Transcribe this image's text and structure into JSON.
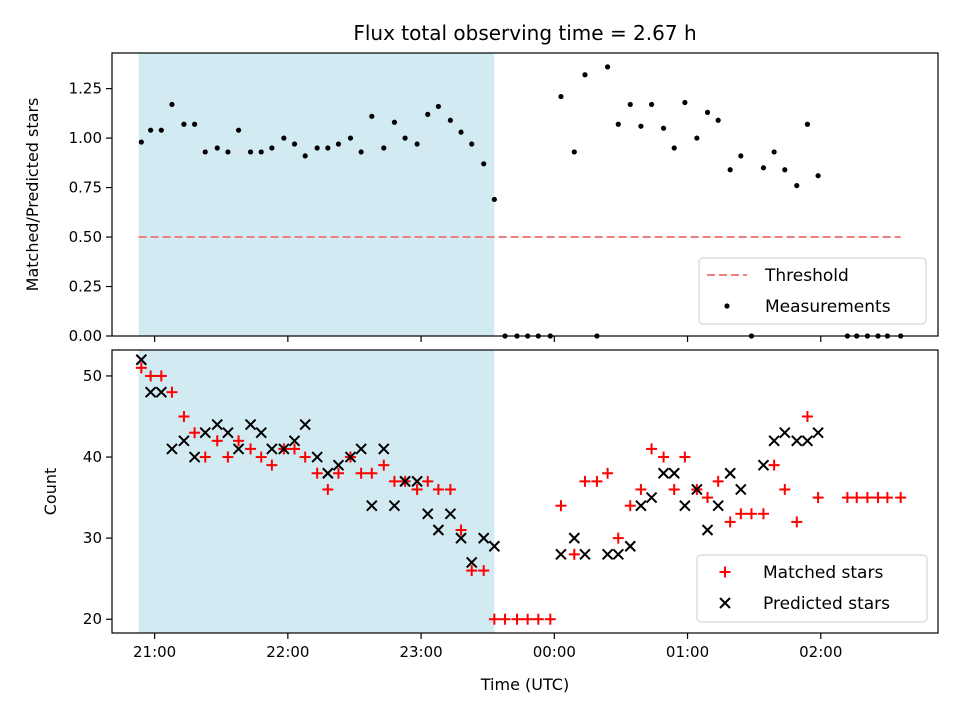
{
  "chart_data": {
    "type": "scatter",
    "title": "Flux total observing time = 2.67 h",
    "xlabel": "Time (UTC)",
    "x_ticks": [
      "21:00",
      "22:00",
      "23:00",
      "00:00",
      "01:00",
      "02:00"
    ],
    "x_tick_hours": [
      21,
      22,
      23,
      24,
      25,
      26
    ],
    "x_range_hours": [
      20.68,
      26.88
    ],
    "shaded_region_hours": [
      20.88,
      23.55
    ],
    "shade_color": "#add8e6",
    "panels": [
      {
        "ylabel": "Matched/Predicted stars",
        "ylim": [
          0,
          1.43
        ],
        "y_ticks": [
          "0.00",
          "0.25",
          "0.50",
          "0.75",
          "1.00",
          "1.25"
        ],
        "y_tick_values": [
          0,
          0.25,
          0.5,
          0.75,
          1.0,
          1.25
        ],
        "legend_position": "lower-right",
        "threshold": {
          "name": "Threshold",
          "value": 0.5,
          "x_start": 20.88,
          "x_end": 26.6,
          "color": "#f08080"
        },
        "series": [
          {
            "name": "Measurements",
            "marker": "dot",
            "color": "#000000",
            "points": [
              [
                20.9,
                0.98
              ],
              [
                20.97,
                1.04
              ],
              [
                21.05,
                1.04
              ],
              [
                21.13,
                1.17
              ],
              [
                21.22,
                1.07
              ],
              [
                21.3,
                1.07
              ],
              [
                21.38,
                0.93
              ],
              [
                21.47,
                0.95
              ],
              [
                21.55,
                0.93
              ],
              [
                21.63,
                1.04
              ],
              [
                21.72,
                0.93
              ],
              [
                21.8,
                0.93
              ],
              [
                21.88,
                0.95
              ],
              [
                21.97,
                1.0
              ],
              [
                22.05,
                0.97
              ],
              [
                22.13,
                0.91
              ],
              [
                22.22,
                0.95
              ],
              [
                22.3,
                0.95
              ],
              [
                22.38,
                0.97
              ],
              [
                22.47,
                1.0
              ],
              [
                22.55,
                0.93
              ],
              [
                22.63,
                1.11
              ],
              [
                22.72,
                0.95
              ],
              [
                22.8,
                1.08
              ],
              [
                22.88,
                1.0
              ],
              [
                22.97,
                0.97
              ],
              [
                23.05,
                1.12
              ],
              [
                23.13,
                1.16
              ],
              [
                23.22,
                1.09
              ],
              [
                23.3,
                1.03
              ],
              [
                23.38,
                0.97
              ],
              [
                23.47,
                0.87
              ],
              [
                23.55,
                0.69
              ],
              [
                23.63,
                0.0
              ],
              [
                23.72,
                0.0
              ],
              [
                23.8,
                0.0
              ],
              [
                23.88,
                0.0
              ],
              [
                23.97,
                0.0
              ],
              [
                24.05,
                1.21
              ],
              [
                24.15,
                0.93
              ],
              [
                24.23,
                1.32
              ],
              [
                24.32,
                0.0
              ],
              [
                24.4,
                1.36
              ],
              [
                24.48,
                1.07
              ],
              [
                24.57,
                1.17
              ],
              [
                24.65,
                1.06
              ],
              [
                24.73,
                1.17
              ],
              [
                24.82,
                1.05
              ],
              [
                24.9,
                0.95
              ],
              [
                24.98,
                1.18
              ],
              [
                25.07,
                1.0
              ],
              [
                25.15,
                1.13
              ],
              [
                25.23,
                1.09
              ],
              [
                25.32,
                0.84
              ],
              [
                25.4,
                0.91
              ],
              [
                25.48,
                0.0
              ],
              [
                25.57,
                0.85
              ],
              [
                25.65,
                0.93
              ],
              [
                25.73,
                0.84
              ],
              [
                25.82,
                0.76
              ],
              [
                25.9,
                1.07
              ],
              [
                25.98,
                0.81
              ],
              [
                26.2,
                0.0
              ],
              [
                26.27,
                0.0
              ],
              [
                26.35,
                0.0
              ],
              [
                26.43,
                0.0
              ],
              [
                26.5,
                0.0
              ],
              [
                26.6,
                0.0
              ]
            ]
          }
        ]
      },
      {
        "ylabel": "Count",
        "ylim": [
          18.3,
          53.2
        ],
        "y_ticks": [
          "20",
          "30",
          "40",
          "50"
        ],
        "y_tick_values": [
          20,
          30,
          40,
          50
        ],
        "legend_position": "lower-right",
        "series": [
          {
            "name": "Matched stars",
            "marker": "plus",
            "color": "#ff0000",
            "points": [
              [
                20.9,
                51
              ],
              [
                20.97,
                50
              ],
              [
                21.05,
                50
              ],
              [
                21.13,
                48
              ],
              [
                21.22,
                45
              ],
              [
                21.3,
                43
              ],
              [
                21.38,
                40
              ],
              [
                21.47,
                42
              ],
              [
                21.55,
                40
              ],
              [
                21.63,
                42
              ],
              [
                21.72,
                41
              ],
              [
                21.8,
                40
              ],
              [
                21.88,
                39
              ],
              [
                21.97,
                41
              ],
              [
                22.05,
                41
              ],
              [
                22.13,
                40
              ],
              [
                22.22,
                38
              ],
              [
                22.3,
                36
              ],
              [
                22.38,
                38
              ],
              [
                22.47,
                40
              ],
              [
                22.55,
                38
              ],
              [
                22.63,
                38
              ],
              [
                22.72,
                39
              ],
              [
                22.8,
                37
              ],
              [
                22.88,
                37
              ],
              [
                22.97,
                36
              ],
              [
                23.05,
                37
              ],
              [
                23.13,
                36
              ],
              [
                23.22,
                36
              ],
              [
                23.3,
                31
              ],
              [
                23.38,
                26
              ],
              [
                23.47,
                26
              ],
              [
                23.55,
                20
              ],
              [
                23.63,
                20
              ],
              [
                23.72,
                20
              ],
              [
                23.8,
                20
              ],
              [
                23.88,
                20
              ],
              [
                23.97,
                20
              ],
              [
                24.05,
                34
              ],
              [
                24.15,
                28
              ],
              [
                24.23,
                37
              ],
              [
                24.32,
                37
              ],
              [
                24.4,
                38
              ],
              [
                24.48,
                30
              ],
              [
                24.57,
                34
              ],
              [
                24.65,
                36
              ],
              [
                24.73,
                41
              ],
              [
                24.82,
                40
              ],
              [
                24.9,
                36
              ],
              [
                24.98,
                40
              ],
              [
                25.07,
                36
              ],
              [
                25.15,
                35
              ],
              [
                25.23,
                37
              ],
              [
                25.32,
                32
              ],
              [
                25.4,
                33
              ],
              [
                25.48,
                33
              ],
              [
                25.57,
                33
              ],
              [
                25.65,
                39
              ],
              [
                25.73,
                36
              ],
              [
                25.82,
                32
              ],
              [
                25.9,
                45
              ],
              [
                25.98,
                35
              ],
              [
                26.2,
                35
              ],
              [
                26.27,
                35
              ],
              [
                26.35,
                35
              ],
              [
                26.43,
                35
              ],
              [
                26.5,
                35
              ],
              [
                26.6,
                35
              ]
            ]
          },
          {
            "name": "Predicted stars",
            "marker": "cross",
            "color": "#000000",
            "points": [
              [
                20.9,
                52
              ],
              [
                20.97,
                48
              ],
              [
                21.05,
                48
              ],
              [
                21.13,
                41
              ],
              [
                21.22,
                42
              ],
              [
                21.3,
                40
              ],
              [
                21.38,
                43
              ],
              [
                21.47,
                44
              ],
              [
                21.55,
                43
              ],
              [
                21.63,
                41
              ],
              [
                21.72,
                44
              ],
              [
                21.8,
                43
              ],
              [
                21.88,
                41
              ],
              [
                21.97,
                41
              ],
              [
                22.05,
                42
              ],
              [
                22.13,
                44
              ],
              [
                22.22,
                40
              ],
              [
                22.3,
                38
              ],
              [
                22.38,
                39
              ],
              [
                22.47,
                40
              ],
              [
                22.55,
                41
              ],
              [
                22.63,
                34
              ],
              [
                22.72,
                41
              ],
              [
                22.8,
                34
              ],
              [
                22.88,
                37
              ],
              [
                22.97,
                37
              ],
              [
                23.05,
                33
              ],
              [
                23.13,
                31
              ],
              [
                23.22,
                33
              ],
              [
                23.3,
                30
              ],
              [
                23.38,
                27
              ],
              [
                23.47,
                30
              ],
              [
                23.55,
                29
              ],
              [
                24.05,
                28
              ],
              [
                24.15,
                30
              ],
              [
                24.23,
                28
              ],
              [
                24.4,
                28
              ],
              [
                24.48,
                28
              ],
              [
                24.57,
                29
              ],
              [
                24.65,
                34
              ],
              [
                24.73,
                35
              ],
              [
                24.82,
                38
              ],
              [
                24.9,
                38
              ],
              [
                24.98,
                34
              ],
              [
                25.07,
                36
              ],
              [
                25.15,
                31
              ],
              [
                25.23,
                34
              ],
              [
                25.32,
                38
              ],
              [
                25.4,
                36
              ],
              [
                25.57,
                39
              ],
              [
                25.65,
                42
              ],
              [
                25.73,
                43
              ],
              [
                25.82,
                42
              ],
              [
                25.9,
                42
              ],
              [
                25.98,
                43
              ]
            ]
          }
        ]
      }
    ]
  }
}
